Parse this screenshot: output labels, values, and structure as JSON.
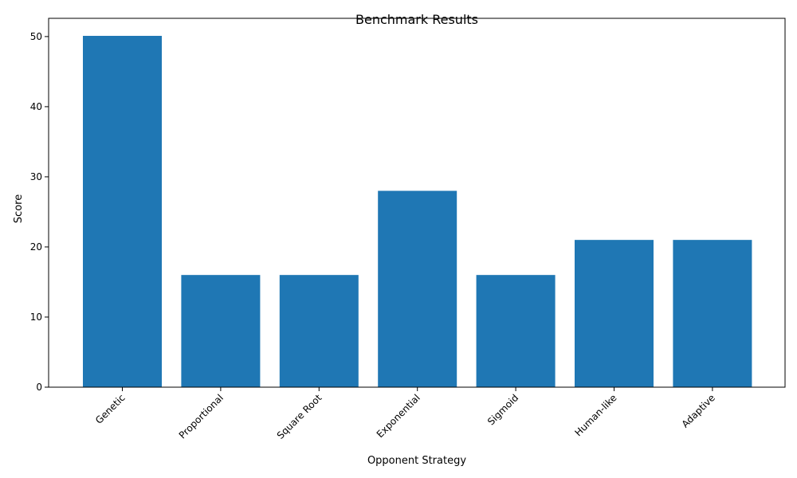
{
  "chart_data": {
    "type": "bar",
    "title": "Benchmark Results",
    "xlabel": "Opponent Strategy",
    "ylabel": "Score",
    "categories": [
      "Genetic",
      "Proportional",
      "Square Root",
      "Exponential",
      "Sigmoid",
      "Human-like",
      "Adaptive"
    ],
    "values": [
      50.1,
      16,
      16,
      28,
      16,
      21,
      21
    ],
    "ylim": [
      0,
      52.6
    ],
    "yticks": [
      0,
      10,
      20,
      30,
      40,
      50
    ],
    "grid": false,
    "bar_color": "#1f77b4"
  }
}
